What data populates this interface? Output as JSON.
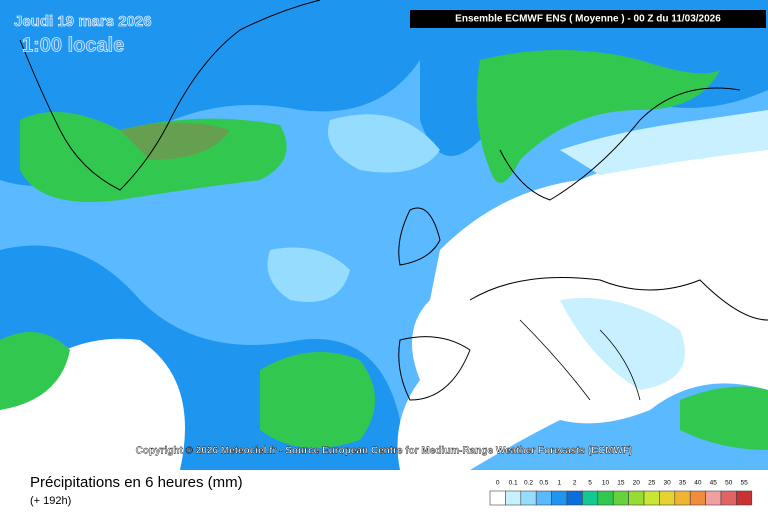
{
  "map": {
    "date": "Jeudi 19 mars 2026",
    "time": "1:00 locale",
    "header": "Ensemble ECMWF ENS  ( Moyenne )  -  00 Z du 11/03/2026",
    "copyright": "Copyright © 2026 Meteociel.fr - Source European Centre for Medium-Range Weather Forecasts (ECMWF)",
    "title": "Précipitations en 6 heures (mm)",
    "subtitle": "(+ 192h)",
    "legend": [
      {
        "label": "0",
        "color": "#ffffff"
      },
      {
        "label": "0.1",
        "color": "#c8f0ff"
      },
      {
        "label": "0.2",
        "color": "#96dcff"
      },
      {
        "label": "0.5",
        "color": "#5ab9ff"
      },
      {
        "label": "1",
        "color": "#1e96f0"
      },
      {
        "label": "2",
        "color": "#0a6edc"
      },
      {
        "label": "5",
        "color": "#14c896"
      },
      {
        "label": "10",
        "color": "#32c850"
      },
      {
        "label": "15",
        "color": "#64d23c"
      },
      {
        "label": "20",
        "color": "#96dc32"
      },
      {
        "label": "25",
        "color": "#c8e632"
      },
      {
        "label": "30",
        "color": "#e6d232"
      },
      {
        "label": "35",
        "color": "#f0b432"
      },
      {
        "label": "40",
        "color": "#f08c3c"
      },
      {
        "label": "45",
        "color": "#f0a0a0"
      },
      {
        "label": "50",
        "color": "#e06464"
      },
      {
        "label": "55",
        "color": "#c83232"
      }
    ]
  }
}
